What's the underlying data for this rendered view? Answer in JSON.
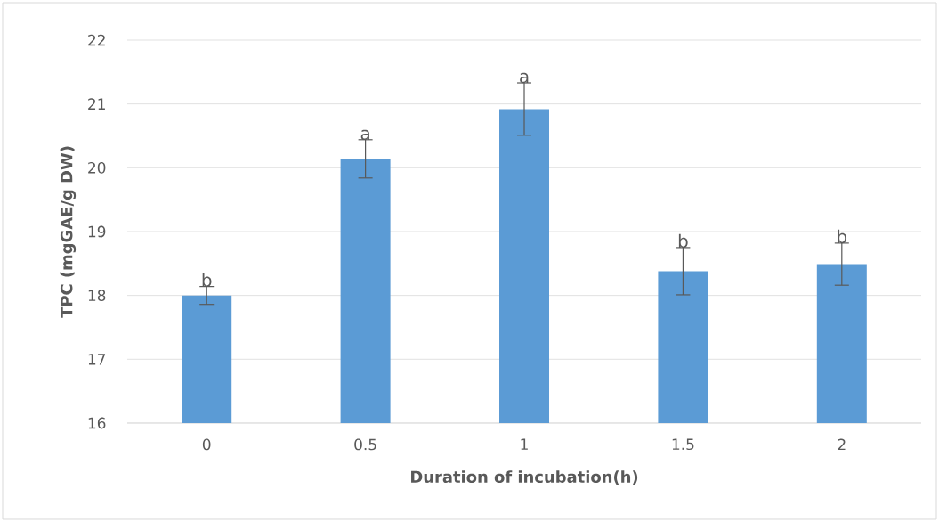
{
  "chart_data": {
    "type": "bar",
    "xlabel": "Duration of incubation(h)",
    "ylabel": "TPC (mgGAE/g DW)",
    "categories": [
      "0",
      "0.5",
      "1",
      "1.5",
      "2"
    ],
    "values": [
      18.0,
      20.14,
      20.92,
      18.38,
      18.49
    ],
    "errors": [
      0.14,
      0.3,
      0.41,
      0.37,
      0.33
    ],
    "color": "#5b9bd5",
    "ylim": [
      16,
      22
    ],
    "yticks": [
      16,
      17,
      18,
      19,
      20,
      21,
      22
    ],
    "grid": "y",
    "annotations": [
      {
        "text": "b",
        "x": "0",
        "y": 18.14
      },
      {
        "text": "a",
        "x": "0.5",
        "y": 20.44
      },
      {
        "text": "a",
        "x": "1",
        "y": 21.33
      },
      {
        "text": "b",
        "x": "1.5",
        "y": 18.75
      },
      {
        "text": "b",
        "x": "2",
        "y": 18.82
      }
    ]
  }
}
